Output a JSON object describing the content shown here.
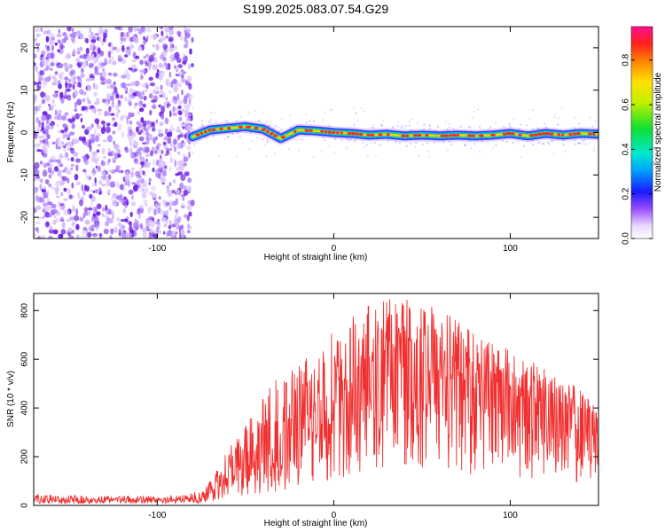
{
  "title": "S199.2025.083.07.54.G29",
  "colors": {
    "snr_line": "#f03030",
    "track_core": "#ff2a2a",
    "noise_light": "#d9c2ff",
    "noise_dark": "#6a1be0",
    "frame": "#000000"
  },
  "chart_data": [
    {
      "type": "heatmap",
      "name": "spectrogram",
      "xlabel": "Height of straight line (km)",
      "ylabel": "Frequency (Hz)",
      "xlim": [
        -170,
        150
      ],
      "ylim": [
        -25,
        25
      ],
      "xticks": [
        -100,
        0,
        100
      ],
      "yticks": [
        -20,
        -10,
        0,
        10,
        20
      ],
      "colorbar": {
        "label": "Normalized spectral amplitude",
        "range": [
          0,
          0.95
        ],
        "ticks": [
          0.0,
          0.2,
          0.4,
          0.6,
          0.8
        ],
        "colormap": "rainbow"
      },
      "noise_region_x": [
        -170,
        -80
      ],
      "signal_track": {
        "x": [
          -80,
          -70,
          -60,
          -50,
          -40,
          -30,
          -20,
          -10,
          0,
          10,
          20,
          30,
          40,
          50,
          60,
          70,
          80,
          90,
          100,
          110,
          120,
          130,
          140,
          150
        ],
        "frequency": [
          -1.0,
          0.6,
          1.0,
          1.4,
          0.8,
          -1.4,
          0.6,
          0.4,
          0.0,
          -0.2,
          -0.6,
          -0.4,
          -0.8,
          -0.6,
          -0.8,
          -0.6,
          -0.8,
          -0.6,
          -0.2,
          -0.8,
          -0.2,
          -0.6,
          -0.2,
          -0.4
        ]
      }
    },
    {
      "type": "line",
      "name": "snr",
      "xlabel": "Height of straight line (km)",
      "ylabel": "SNR (10 * v/v)",
      "xlim": [
        -170,
        150
      ],
      "ylim": [
        0,
        870
      ],
      "xticks": [
        -100,
        0,
        100
      ],
      "yticks": [
        0,
        200,
        400,
        600,
        800
      ],
      "envelope": {
        "x": [
          -170,
          -130,
          -90,
          -75,
          -70,
          -60,
          -50,
          -40,
          -30,
          -20,
          -10,
          0,
          10,
          20,
          30,
          35,
          40,
          50,
          60,
          70,
          80,
          90,
          100,
          110,
          120,
          130,
          140,
          150
        ],
        "mean": [
          20,
          20,
          22,
          35,
          60,
          120,
          160,
          200,
          240,
          290,
          350,
          400,
          470,
          560,
          620,
          640,
          620,
          580,
          540,
          520,
          500,
          480,
          460,
          430,
          400,
          380,
          360,
          330
        ],
        "max": [
          45,
          40,
          40,
          60,
          110,
          250,
          330,
          450,
          540,
          600,
          660,
          720,
          770,
          830,
          850,
          860,
          860,
          840,
          820,
          790,
          730,
          680,
          640,
          600,
          560,
          520,
          480,
          430
        ]
      }
    }
  ]
}
